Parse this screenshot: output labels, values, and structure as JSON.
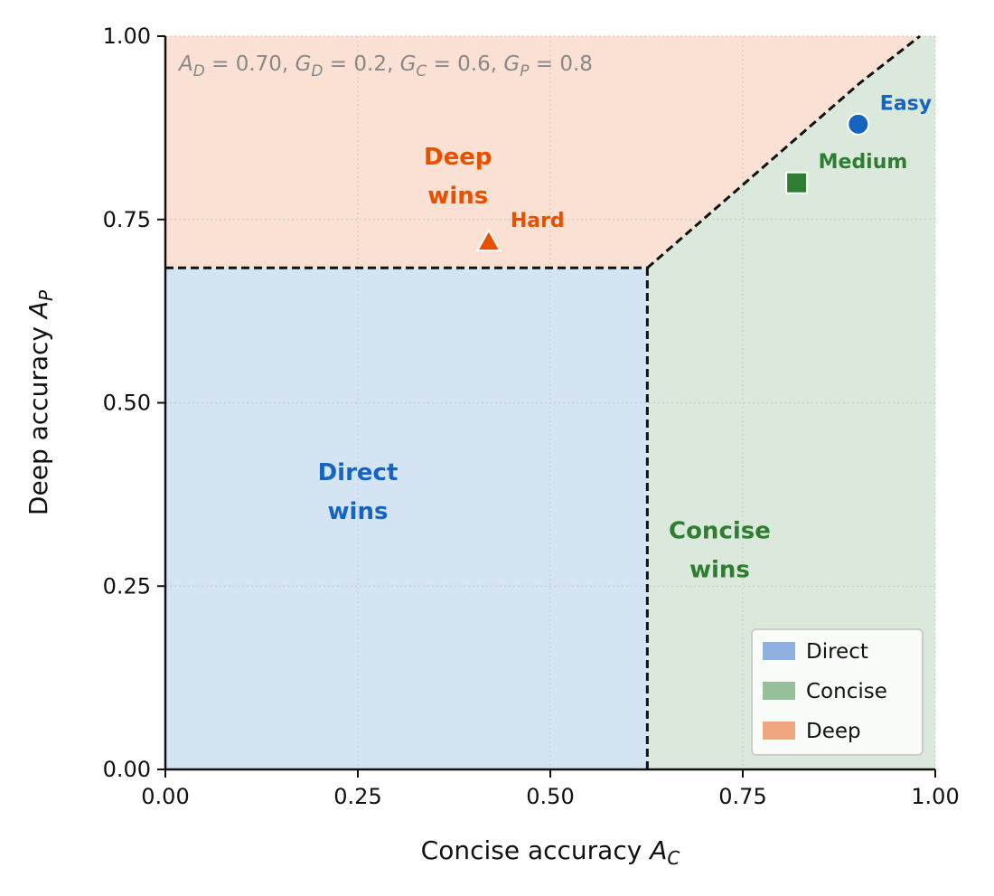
{
  "chart_data": {
    "type": "scatter",
    "xlabel": "Concise accuracy A_C",
    "ylabel": "Deep accuracy A_P",
    "xlim": [
      0.0,
      1.0
    ],
    "ylim": [
      0.0,
      1.0
    ],
    "x_ticks": [
      "0.00",
      "0.25",
      "0.50",
      "0.75",
      "1.00"
    ],
    "y_ticks": [
      "0.00",
      "0.25",
      "0.50",
      "0.75",
      "1.00"
    ],
    "x_tick_values": [
      0.0,
      0.25,
      0.5,
      0.75,
      1.0
    ],
    "y_tick_values": [
      0.0,
      0.25,
      0.5,
      0.75,
      1.0
    ],
    "grid": true,
    "legend_position": "bottom-right",
    "annotation": {
      "parts": [
        {
          "base": "A",
          "sub": "D",
          "rest": " = 0.70,  "
        },
        {
          "base": "G",
          "sub": "D",
          "rest": " = 0.2,  "
        },
        {
          "base": "G",
          "sub": "C",
          "rest": " = 0.6,  "
        },
        {
          "base": "G",
          "sub": "P",
          "rest": " = 0.8"
        }
      ]
    },
    "regions": [
      {
        "name": "Direct",
        "label_lines": [
          "Direct",
          "wins"
        ],
        "fill": "#d5e4f3",
        "label_color": "#1565c0",
        "label_at": [
          0.25,
          0.38
        ]
      },
      {
        "name": "Concise",
        "label_lines": [
          "Concise",
          "wins"
        ],
        "fill": "#dbe9dc",
        "label_color": "#2e7d32",
        "label_at": [
          0.72,
          0.3
        ]
      },
      {
        "name": "Deep",
        "label_lines": [
          "Deep",
          "wins"
        ],
        "fill": "#fae1d3",
        "label_color": "#e65100",
        "label_at": [
          0.38,
          0.81
        ]
      }
    ],
    "boundaries": {
      "direct_concise_x": 0.626,
      "direct_deep_y": 0.684,
      "concise_deep_line": [
        [
          0.626,
          0.684
        ],
        [
          0.902,
          0.936
        ],
        [
          0.98,
          1.0
        ]
      ]
    },
    "points": [
      {
        "label": "Easy",
        "x": 0.9,
        "y": 0.88,
        "marker": "circle",
        "color": "#1565c0"
      },
      {
        "label": "Medium",
        "x": 0.82,
        "y": 0.8,
        "marker": "square",
        "color": "#2e7d32"
      },
      {
        "label": "Hard",
        "x": 0.42,
        "y": 0.72,
        "marker": "triangle",
        "color": "#e65100"
      }
    ],
    "legend": [
      {
        "label": "Direct",
        "color": "#8fb1df"
      },
      {
        "label": "Concise",
        "color": "#97bf99"
      },
      {
        "label": "Deep",
        "color": "#f0a67e"
      }
    ]
  }
}
